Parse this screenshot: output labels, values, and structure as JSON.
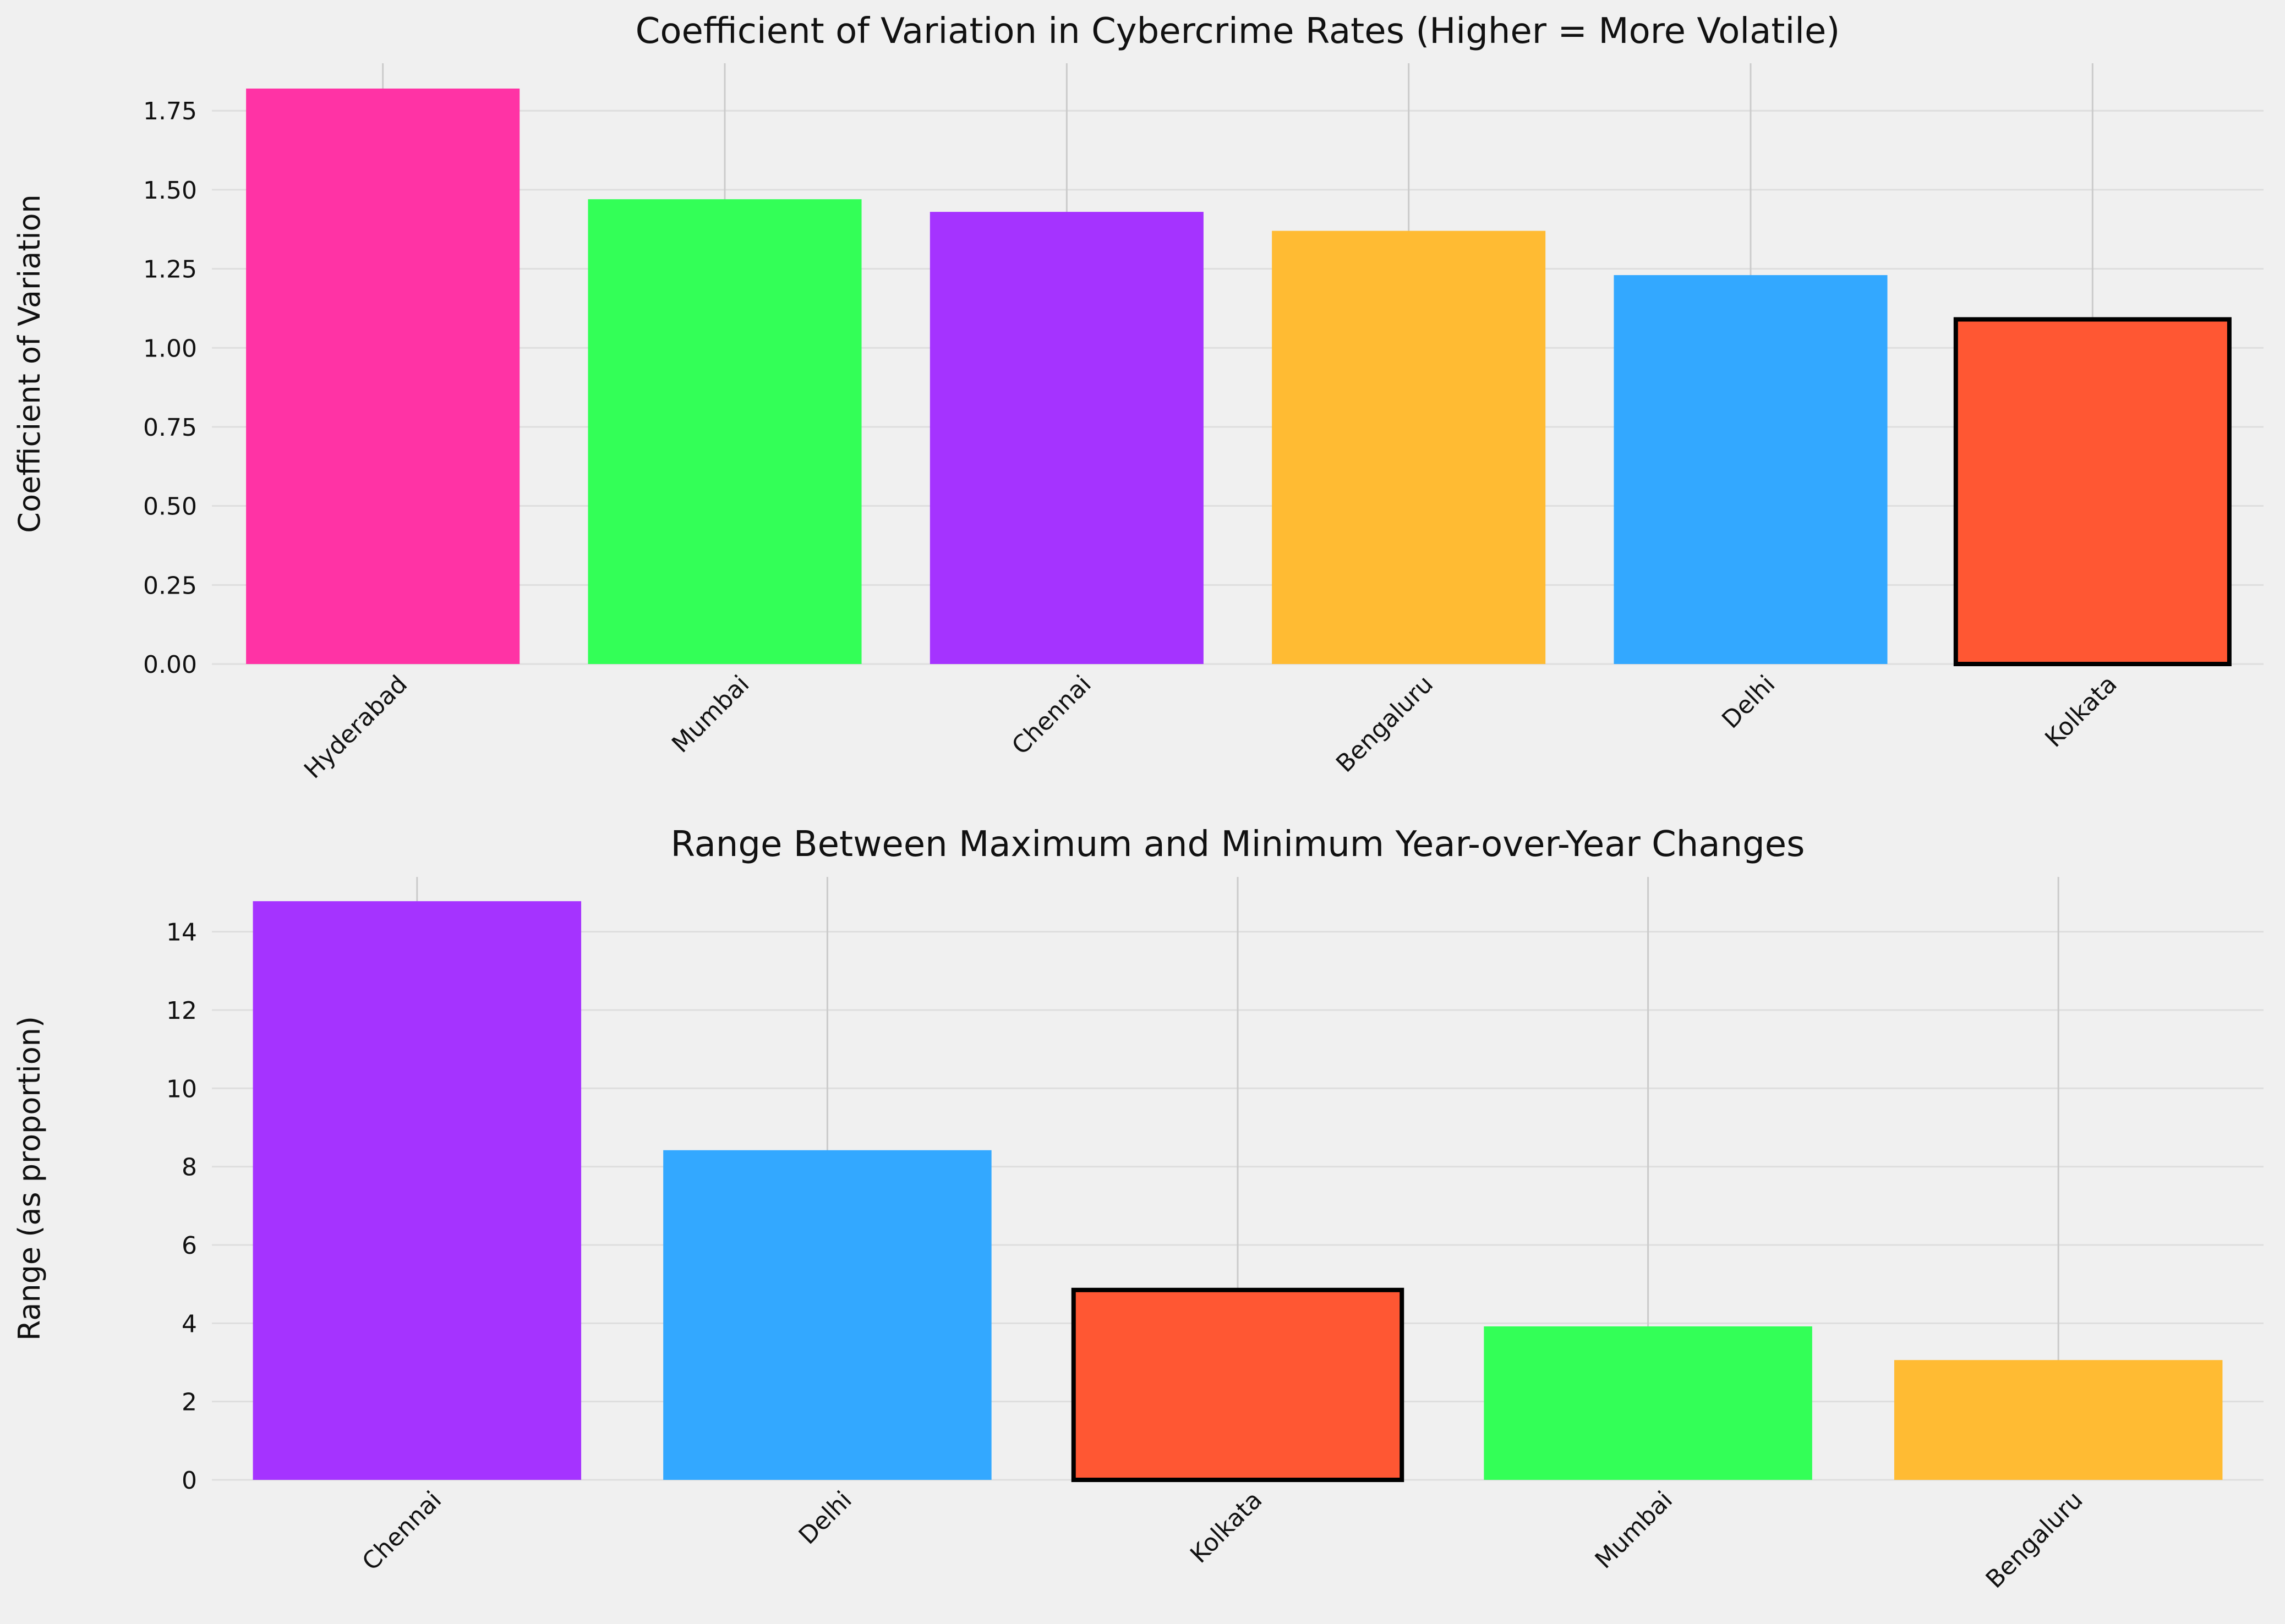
{
  "chart_data": [
    {
      "type": "bar",
      "title": "Coefficient of Variation in Cybercrime Rates (Higher = More Volatile)",
      "xlabel": "",
      "ylabel": "Coefficient of Variation",
      "categories": [
        "Hyderabad",
        "Mumbai",
        "Chennai",
        "Bengaluru",
        "Delhi",
        "Kolkata"
      ],
      "values": [
        1.82,
        1.47,
        1.43,
        1.37,
        1.23,
        1.09
      ],
      "colors": [
        "#ff33a5",
        "#33ff57",
        "#a533ff",
        "#ffbb33",
        "#33a8ff",
        "#ff5733"
      ],
      "highlighted": [
        "Kolkata"
      ],
      "ylim": [
        0,
        1.9
      ],
      "yticks": [
        0.0,
        0.25,
        0.5,
        0.75,
        1.0,
        1.25,
        1.5,
        1.75
      ],
      "ytick_labels": [
        "0.00",
        "0.25",
        "0.50",
        "0.75",
        "1.00",
        "1.25",
        "1.50",
        "1.75"
      ],
      "grid": true
    },
    {
      "type": "bar",
      "title": "Range Between Maximum and Minimum Year-over-Year Changes",
      "xlabel": "",
      "ylabel": "Range (as proportion)",
      "categories": [
        "Chennai",
        "Delhi",
        "Kolkata",
        "Mumbai",
        "Bengaluru"
      ],
      "values": [
        14.78,
        8.42,
        4.85,
        3.92,
        3.06
      ],
      "colors": [
        "#a533ff",
        "#33a8ff",
        "#ff5733",
        "#33ff57",
        "#ffbb33"
      ],
      "highlighted": [
        "Kolkata"
      ],
      "ylim": [
        0,
        15.4
      ],
      "yticks": [
        0,
        2,
        4,
        6,
        8,
        10,
        12,
        14
      ],
      "ytick_labels": [
        "0",
        "2",
        "4",
        "6",
        "8",
        "10",
        "12",
        "14"
      ],
      "grid": true
    }
  ]
}
